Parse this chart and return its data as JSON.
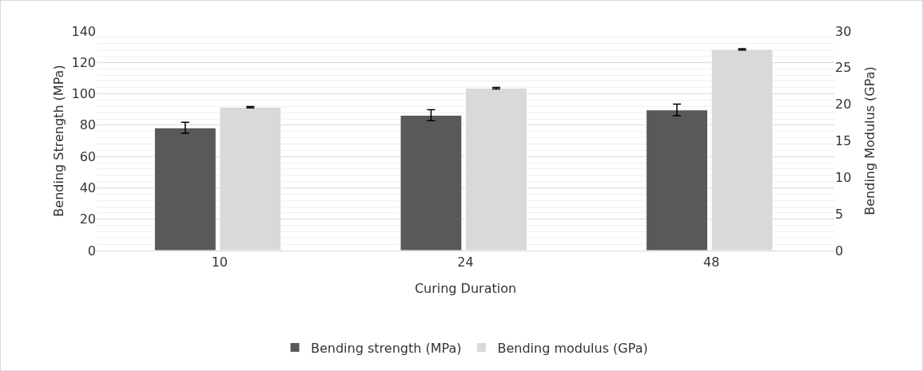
{
  "chart_data": {
    "type": "bar",
    "xlabel": "Curing Duration",
    "ylabel": "Bending Strength (MPa)",
    "y2label": "Bending Modulus (GPa)",
    "categories": [
      "10",
      "24",
      "48"
    ],
    "series": [
      {
        "name": "Bending strength (MPa)",
        "color": "#595959",
        "values": [
          78.3,
          86.3,
          89.7
        ],
        "errors": [
          3.5,
          3.5,
          3.7
        ]
      },
      {
        "name": "Bending modulus (GPa)",
        "color": "#d9d9d9",
        "values": [
          19.6,
          22.2,
          27.5
        ],
        "errors": [
          0.1,
          0.1,
          0.1
        ],
        "axis": "y2"
      }
    ],
    "ylim": [
      0,
      140
    ],
    "yticks": [
      0,
      20,
      40,
      60,
      80,
      100,
      120,
      140
    ],
    "y2lim": [
      0,
      30
    ],
    "y2ticks": [
      0,
      5,
      10,
      15,
      20,
      25,
      30
    ],
    "grid": "y",
    "legend": "bottom"
  }
}
